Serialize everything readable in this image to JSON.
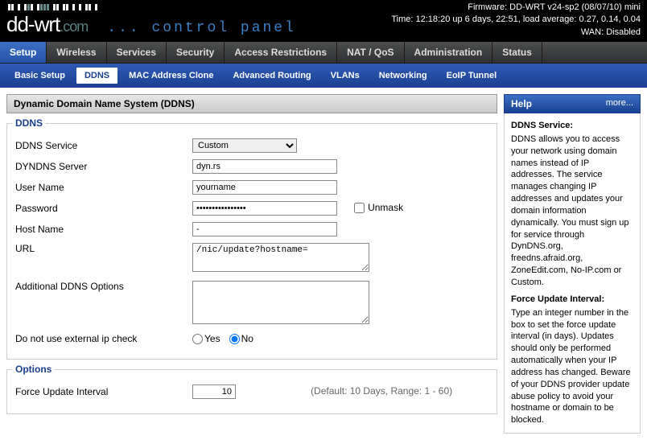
{
  "header": {
    "firmware": "Firmware: DD-WRT v24-sp2 (08/07/10) mini",
    "time": "Time: 12:18:20 up 6 days, 22:51, load average: 0.27, 0.14, 0.04",
    "wan": "WAN: Disabled",
    "control_panel": "... control panel"
  },
  "tabs": {
    "main": [
      "Setup",
      "Wireless",
      "Services",
      "Security",
      "Access Restrictions",
      "NAT / QoS",
      "Administration",
      "Status"
    ],
    "main_active": 0,
    "sub": [
      "Basic Setup",
      "DDNS",
      "MAC Address Clone",
      "Advanced Routing",
      "VLANs",
      "Networking",
      "EoIP Tunnel"
    ],
    "sub_active": 1
  },
  "page": {
    "title": "Dynamic Domain Name System (DDNS)"
  },
  "ddns": {
    "legend": "DDNS",
    "service_label": "DDNS Service",
    "service_value": "Custom",
    "server_label": "DYNDNS Server",
    "server_value": "dyn.rs",
    "username_label": "User Name",
    "username_value": "yourname",
    "password_label": "Password",
    "password_value": "••••••••••••••••",
    "unmask_label": "Unmask",
    "hostname_label": "Host Name",
    "hostname_value": "-",
    "url_label": "URL",
    "url_value": "/nic/update?hostname=",
    "additional_label": "Additional DDNS Options",
    "additional_value": "",
    "extcheck_label": "Do not use external ip check",
    "yes": "Yes",
    "no": "No"
  },
  "options": {
    "legend": "Options",
    "force_label": "Force Update Interval",
    "force_value": "10",
    "force_hint": "(Default: 10 Days, Range: 1 - 60)"
  },
  "help": {
    "title": "Help",
    "more": "more...",
    "h1": "DDNS Service:",
    "p1": "DDNS allows you to access your network using domain names instead of IP addresses. The service manages changing IP addresses and updates your domain information dynamically. You must sign up for service through DynDNS.org, freedns.afraid.org, ZoneEdit.com, No-IP.com or Custom.",
    "h2": "Force Update Interval:",
    "p2": "Type an integer number in the box to set the force update interval (in days). Updates should only be performed automatically when your IP address has changed. Beware of your DDNS provider update abuse policy to avoid your hostname or domain to be blocked."
  },
  "colors": {
    "accent": "#1a3f8f",
    "header_bg": "#000000",
    "tab_active_bg": "#2f5bb7"
  }
}
